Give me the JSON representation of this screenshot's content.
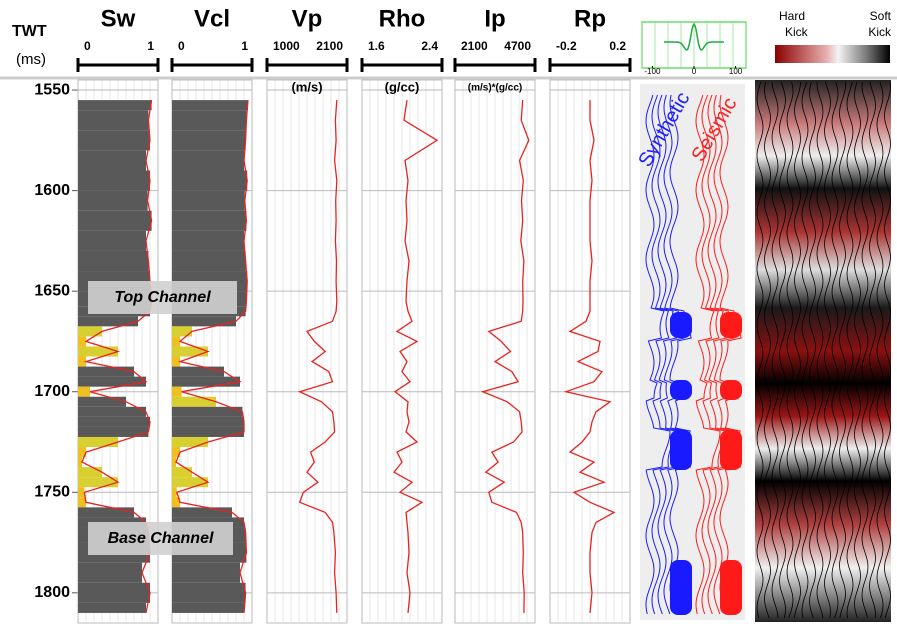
{
  "chart_data": {
    "type": "well-log",
    "y_label": "TWT",
    "y_unit": "(ms)",
    "ylim": [
      1545,
      1815
    ],
    "yticks": [
      1550,
      1600,
      1650,
      1700,
      1750,
      1800
    ],
    "depths": [
      1555,
      1565,
      1575,
      1585,
      1595,
      1605,
      1615,
      1625,
      1635,
      1645,
      1655,
      1660,
      1665,
      1670,
      1675,
      1680,
      1685,
      1690,
      1695,
      1700,
      1705,
      1710,
      1715,
      1720,
      1725,
      1730,
      1735,
      1740,
      1745,
      1750,
      1755,
      1760,
      1765,
      1770,
      1780,
      1790,
      1800,
      1810
    ],
    "tracks": [
      {
        "type": "fill",
        "title": "Sw",
        "xlim": [
          0,
          1
        ],
        "xticks": [
          0,
          1
        ],
        "color": "#e8231f",
        "values": [
          0.92,
          0.88,
          0.9,
          0.85,
          0.9,
          0.87,
          0.92,
          0.85,
          0.88,
          0.9,
          0.92,
          0.9,
          0.75,
          0.3,
          0.1,
          0.5,
          0.1,
          0.7,
          0.85,
          0.15,
          0.6,
          0.85,
          0.9,
          0.88,
          0.5,
          0.1,
          0.05,
          0.3,
          0.5,
          0.08,
          0.1,
          0.7,
          0.85,
          0.88,
          0.9,
          0.8,
          0.9,
          0.85
        ]
      },
      {
        "type": "fill",
        "title": "Vcl",
        "xlim": [
          0,
          1
        ],
        "xticks": [
          0,
          1
        ],
        "color": "#e8231f",
        "values": [
          0.95,
          0.93,
          0.92,
          0.9,
          0.94,
          0.91,
          0.93,
          0.9,
          0.92,
          0.94,
          0.93,
          0.92,
          0.8,
          0.25,
          0.1,
          0.45,
          0.1,
          0.65,
          0.85,
          0.12,
          0.55,
          0.88,
          0.9,
          0.9,
          0.45,
          0.1,
          0.05,
          0.25,
          0.45,
          0.06,
          0.1,
          0.75,
          0.9,
          0.92,
          0.93,
          0.85,
          0.92,
          0.9
        ]
      },
      {
        "type": "line",
        "title": "Vp",
        "unit": "(m/s)",
        "xlim": [
          1000,
          2100
        ],
        "xticks": [
          1000,
          2100
        ],
        "color": "#e8231f",
        "values": [
          1960,
          1940,
          1950,
          1930,
          1960,
          1945,
          1950,
          1940,
          1955,
          1950,
          1960,
          1950,
          1900,
          1550,
          1650,
          1800,
          1620,
          1850,
          1900,
          1450,
          1750,
          1900,
          1920,
          1930,
          1800,
          1600,
          1650,
          1550,
          1700,
          1500,
          1450,
          1800,
          1900,
          1920,
          1940,
          1930,
          1950,
          1960
        ]
      },
      {
        "type": "line",
        "title": "Rho",
        "unit": "(g/cc)",
        "xlim": [
          1.6,
          2.4
        ],
        "xticks": [
          1.6,
          2.4
        ],
        "color": "#e8231f",
        "values": [
          2.05,
          2.02,
          2.35,
          2.03,
          2.06,
          2.04,
          2.05,
          2.03,
          2.07,
          2.05,
          2.04,
          2.06,
          2.1,
          1.95,
          2.15,
          1.98,
          2.05,
          2.0,
          2.08,
          1.93,
          2.06,
          2.05,
          2.07,
          2.04,
          2.15,
          1.95,
          2.0,
          1.92,
          2.1,
          1.98,
          2.2,
          2.04,
          2.05,
          2.06,
          2.07,
          2.05,
          2.08,
          2.06
        ]
      },
      {
        "type": "line",
        "title": "Ip",
        "unit": "(m/s)*(g/cc)",
        "xlim": [
          2100,
          4700
        ],
        "xticks": [
          2100,
          4700
        ],
        "color": "#e8231f",
        "values": [
          4300,
          4250,
          4500,
          4200,
          4320,
          4260,
          4300,
          4240,
          4340,
          4300,
          4310,
          4300,
          4250,
          3200,
          3600,
          3900,
          3400,
          3950,
          4150,
          3000,
          3800,
          4200,
          4250,
          4280,
          4000,
          3300,
          3500,
          3100,
          3700,
          3200,
          3300,
          4100,
          4250,
          4300,
          4320,
          4300,
          4350,
          4340
        ]
      },
      {
        "type": "line",
        "title": "Rp",
        "xlim": [
          -0.2,
          0.2
        ],
        "xticks": [
          -0.2,
          0.2
        ],
        "color": "#e8231f",
        "values": [
          0,
          0,
          0.02,
          0,
          0.01,
          0,
          0,
          0,
          0.01,
          0,
          0,
          0,
          -0.02,
          -0.1,
          0.05,
          0.04,
          -0.06,
          0.06,
          0.02,
          -0.12,
          0.1,
          0.03,
          0.01,
          0,
          -0.04,
          -0.1,
          0.02,
          -0.05,
          0.07,
          -0.08,
          0,
          0.12,
          0.03,
          0.01,
          0,
          0,
          0.01,
          0
        ]
      }
    ],
    "annotations": {
      "top": "Top Channel",
      "base": "Base Channel",
      "synthetic": "Synthetic",
      "seismic": "Seismic"
    },
    "wavelet": {
      "xlim": [
        -125,
        125
      ],
      "xticks": [
        -100,
        0,
        100
      ]
    },
    "colorbar": {
      "hard": [
        "Hard",
        "Kick"
      ],
      "soft": [
        "Soft",
        "Kick"
      ]
    }
  }
}
